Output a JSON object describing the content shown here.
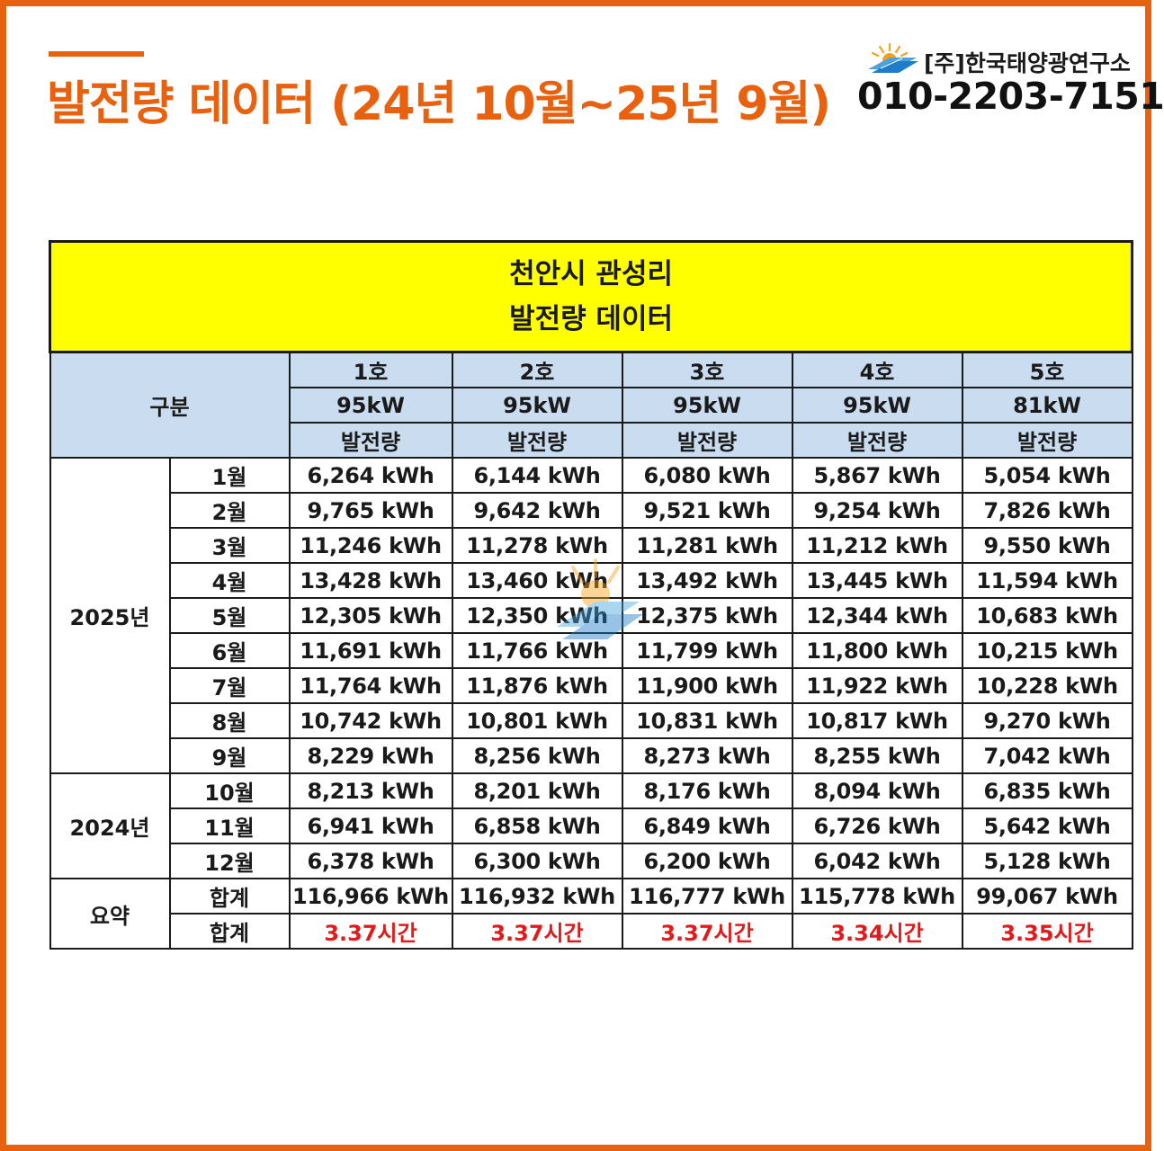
{
  "header": {
    "title": "발전량 데이터 (24년 10월~25년 9월)",
    "company": "[주]한국태양광연구소",
    "phone": "010-2203-7151"
  },
  "table": {
    "banner_line1": "천안시 관성리",
    "banner_line2": "발전량 데이터",
    "category_label": "구분",
    "units": [
      {
        "name": "1호",
        "capacity": "95kW",
        "metric": "발전량"
      },
      {
        "name": "2호",
        "capacity": "95kW",
        "metric": "발전량"
      },
      {
        "name": "3호",
        "capacity": "95kW",
        "metric": "발전량"
      },
      {
        "name": "4호",
        "capacity": "95kW",
        "metric": "발전량"
      },
      {
        "name": "5호",
        "capacity": "81kW",
        "metric": "발전량"
      }
    ],
    "groups": [
      {
        "year": "2025년",
        "rows": [
          {
            "month": "1월",
            "values": [
              "6,264 kWh",
              "6,144 kWh",
              "6,080 kWh",
              "5,867 kWh",
              "5,054 kWh"
            ]
          },
          {
            "month": "2월",
            "values": [
              "9,765 kWh",
              "9,642 kWh",
              "9,521 kWh",
              "9,254 kWh",
              "7,826 kWh"
            ]
          },
          {
            "month": "3월",
            "values": [
              "11,246 kWh",
              "11,278 kWh",
              "11,281 kWh",
              "11,212 kWh",
              "9,550 kWh"
            ]
          },
          {
            "month": "4월",
            "values": [
              "13,428 kWh",
              "13,460 kWh",
              "13,492 kWh",
              "13,445 kWh",
              "11,594 kWh"
            ]
          },
          {
            "month": "5월",
            "values": [
              "12,305 kWh",
              "12,350 kWh",
              "12,375 kWh",
              "12,344 kWh",
              "10,683 kWh"
            ]
          },
          {
            "month": "6월",
            "values": [
              "11,691 kWh",
              "11,766 kWh",
              "11,799 kWh",
              "11,800 kWh",
              "10,215 kWh"
            ]
          },
          {
            "month": "7월",
            "values": [
              "11,764 kWh",
              "11,876 kWh",
              "11,900 kWh",
              "11,922 kWh",
              "10,228 kWh"
            ]
          },
          {
            "month": "8월",
            "values": [
              "10,742 kWh",
              "10,801 kWh",
              "10,831 kWh",
              "10,817 kWh",
              "9,270 kWh"
            ]
          },
          {
            "month": "9월",
            "values": [
              "8,229 kWh",
              "8,256 kWh",
              "8,273 kWh",
              "8,255 kWh",
              "7,042 kWh"
            ]
          }
        ]
      },
      {
        "year": "2024년",
        "rows": [
          {
            "month": "10월",
            "values": [
              "8,213 kWh",
              "8,201 kWh",
              "8,176 kWh",
              "8,094 kWh",
              "6,835 kWh"
            ]
          },
          {
            "month": "11월",
            "values": [
              "6,941 kWh",
              "6,858 kWh",
              "6,849 kWh",
              "6,726 kWh",
              "5,642 kWh"
            ]
          },
          {
            "month": "12월",
            "values": [
              "6,378 kWh",
              "6,300 kWh",
              "6,200 kWh",
              "6,042 kWh",
              "5,128 kWh"
            ]
          }
        ]
      }
    ],
    "summary": {
      "label": "요약",
      "total_label": "합계",
      "totals": [
        "116,966 kWh",
        "116,932 kWh",
        "116,777 kWh",
        "115,778 kWh",
        "99,067 kWh"
      ],
      "hours_label": "합계",
      "hours": [
        "3.37시간",
        "3.37시간",
        "3.37시간",
        "3.34시간",
        "3.35시간"
      ]
    }
  },
  "colors": {
    "accent": "#e8610f",
    "banner": "#ffff00",
    "header_fill": "#c9dcf0",
    "hours_text": "#e01b1b"
  },
  "icons": {
    "logo": "sun-solar-panel-icon"
  }
}
